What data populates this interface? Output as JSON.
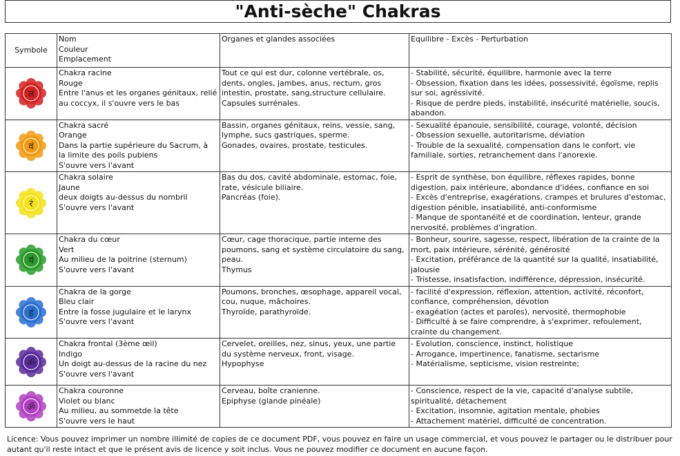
{
  "title": "\"Anti-sèche\" Chakras",
  "headers": {
    "symbol": "Symbole",
    "name": "Nom\nCouleur\nEmplacement",
    "organs": "Organes et glandes associées",
    "balance": "Equilibre - Excès - Perturbation"
  },
  "rows": [
    {
      "icon": "root-chakra-icon",
      "color": "#d42020",
      "glyph": "लं",
      "name": "Chakra racine\nRouge\nEntre l'anus et les organes génitaux, relié\nau coccyx, il s'ouvre vers le bas",
      "organs": "Tout ce qui est dur, colonne vertébrale, os,\ndents, ongles, jambes, anus, rectum, gros\nintestin, prostate, sang,structure cellulaire.\nCapsules surrénales.",
      "balance": "- Stabilité, sécurité, équilibre, harmonie avec la terre\n- Obsession, fixation dans les idées, possessivité, égoïsme, replis\nsur soi, agréssivité.\n- Risque de perdre pieds, instabilité, insécurité matérielle, soucis,\nabandon."
    },
    {
      "icon": "sacral-chakra-icon",
      "color": "#f39a12",
      "glyph": "वं",
      "name": "Chakra sacré\nOrange\nDans la partie supérieure du Sacrum, à\nla limite des poils pubiens\nS'ouvre vers l'avant",
      "organs": "Bassin, organes génitaux, reins, vessie, sang,\nlymphe, sucs gastriques, sperme.\nGonades, ovaires, prostate, testicules.",
      "balance": "- Sexualité épanouie, sensibilité, courage, volonté, décision\n- Obsession sexuelle, autoritarisme, déviation\n- Trouble de la sexualité, compensation dans le confort, vie\nfamiliale, sorties, retranchement dans l'anorexie."
    },
    {
      "icon": "solar-plexus-chakra-icon",
      "color": "#f5e21a",
      "glyph": "रं",
      "name": "Chakra solaire\nJaune\ndeux doigts au-dessus du nombril\nS'ouvre vers l'avant",
      "organs": "Bas du dos, cavité abdominale, estomac, foie,\nrate, vésicule biliaire.\nPancréas (foie).",
      "balance": "- Esprit de synthèse, bon équilibre, réflexes rapides, bonne\ndigestion, paix intérieure, abondance d'idées, confiance en soi\n- Excès d'entreprise, exagérations, crampes et brulures d'estomac,\ndigestion pénible, insatiabilité, anti-conformisme\n- Manque de spontanéité et de coordination, lenteur, grande\nnervosité, problèmes d'ingration."
    },
    {
      "icon": "heart-chakra-icon",
      "color": "#2a9a2a",
      "glyph": "यं",
      "name": "Chakra du cœur\nVert\nAu milieu de la poitrine (sternum)\nS'ouvre vers l'avant",
      "organs": "Cœur, cage thoracique, partie interne des\npoumons, sang et système circulatoire du sang,\npeau.\nThymus",
      "balance": "- Bonheur, sourire, sagesse, respect, libération de la crainte de la\nmort, paix intérieure, sérénité, générosité\n- Excitation, préférance de la quantité sur la qualité, insatiabilité,\njalousie\n- Tristesse, insatisfaction, indifférence, dépression, insécurité."
    },
    {
      "icon": "throat-chakra-icon",
      "color": "#2a6fd0",
      "glyph": "हं",
      "name": "Chakra de la gorge\nBleu clair\nEntre la fosse jugulaire et le larynx\nS'ouvre vers l'avant",
      "organs": "Poumons, bronches, œsophage, appareil vocal,\ncou, nuque, mâchoires.\nThyroïde, parathyroïde.",
      "balance": "- facilité d'expression, réflexion, attention, activité, réconfort,\nconfiance, compréhension, dévotion\n- exagéation (actes et paroles), nervosité, thermophobie\n- Difficulté à se faire comprendre, à s'exprimer, refoulement,\ncrainte du changement."
    },
    {
      "icon": "third-eye-chakra-icon",
      "color": "#5a2a9a",
      "glyph": "ॐ",
      "name": "Chakra frontal (3ème œil)\nIndigo\nUn doigt au-dessus de la racine du nez\nS'ouvre vers l'avant",
      "organs": "Cervelet, oreilles, nez, sinus, yeux, une partie\ndu système nerveux, front, visage.\nHypophyse",
      "balance": "- Evolution, conscience, instinct, holistique\n- Arrogance, impertinence, fanatisme, sectarisme\n- Matérialisme, septicisme, vision restreinte;"
    },
    {
      "icon": "crown-chakra-icon",
      "color": "#b040c0",
      "glyph": "ॐ",
      "name": "Chakra couronne\nViolet ou blanc\nAu milieu, au sommetde la tête\nS'ouvre vers le haut",
      "organs": "Cerveau, boîte cranienne.\nEpiphyse (glande pinéale)",
      "balance": "- Conscience, respect de la vie, capacité d'analyse subtile,\nspiritualité, détachement\n- Excitation, insomnie, agitation mentale, phobies\n- Attachement matériel, difficulté de concentration."
    }
  ],
  "licence": "Licence: Vous pouvez imprimer un nombre illimité de copies de ce document PDF, vous pouvez en faire un usage commercial, et vous pouvez le partager ou le distribuer pour autant qu'il reste intact et que le présent avis de licence y soit inclus. Vous ne pouvez modifier ce document en aucune façon."
}
